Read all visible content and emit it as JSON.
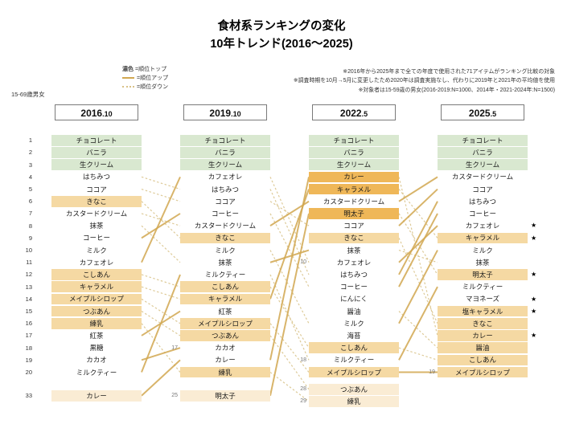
{
  "title": {
    "line1": "食材系ランキングの変化",
    "line2": "10年トレンド(2016〜2025)"
  },
  "legend": {
    "top_pre": "濃色",
    "top": "=順位トップ",
    "up": "=順位アップ",
    "down": "=順位ダウン"
  },
  "audience": "15-69歳男女",
  "notes": [
    "※2016年から2025年まで全ての年度で使用された71アイテムがランキング比較の対象",
    "※調査時期を10月→5月に変更したため2020年は調査実施なし、代わりに2019年と2021年の平均値を使用",
    "※対象者は15-59歳の男女(2016-2019:N=1000、2014年・2021-2024年:N=1500)"
  ],
  "chart_data": {
    "type": "table",
    "title": "食材系ランキングの変化 10年トレンド(2016〜2025)",
    "star_glyph": "★",
    "legend_meaning": {
      "dark": "順位トップ",
      "solid_line": "順位アップ",
      "dotted_line": "順位ダウン"
    },
    "highlight_colors": {
      "green": "#d9e8d0",
      "orange": "#efb758",
      "tan": "#f5d9a3",
      "pale": "#faecd4"
    },
    "line_colors": {
      "up": "#d2a851",
      "down": "#d8c186"
    },
    "columns": [
      {
        "header": "2016.10",
        "items": [
          {
            "label": "チョコレート",
            "hl": "green"
          },
          {
            "label": "バニラ",
            "hl": "green"
          },
          {
            "label": "生クリーム",
            "hl": "green"
          },
          {
            "label": "はちみつ"
          },
          {
            "label": "ココア"
          },
          {
            "label": "きなこ",
            "hl": "tan"
          },
          {
            "label": "カスタードクリーム"
          },
          {
            "label": "抹茶"
          },
          {
            "label": "コーヒー"
          },
          {
            "label": "ミルク"
          },
          {
            "label": "カフェオレ"
          },
          {
            "label": "こしあん",
            "hl": "tan"
          },
          {
            "label": "キャラメル",
            "hl": "tan"
          },
          {
            "label": "メイプルシロップ",
            "hl": "tan"
          },
          {
            "label": "つぶあん",
            "hl": "tan"
          },
          {
            "label": "練乳",
            "hl": "tan"
          },
          {
            "label": "紅茶"
          },
          {
            "label": "黒糖"
          },
          {
            "label": "カカオ"
          },
          {
            "label": "ミルクティー"
          }
        ],
        "extras": [
          {
            "rank": 33,
            "label": "カレー",
            "hl": "pale"
          }
        ]
      },
      {
        "header": "2019.10",
        "items": [
          {
            "label": "チョコレート",
            "hl": "green"
          },
          {
            "label": "バニラ",
            "hl": "green"
          },
          {
            "label": "生クリーム",
            "hl": "green"
          },
          {
            "label": "カフェオレ"
          },
          {
            "label": "はちみつ"
          },
          {
            "label": "ココア"
          },
          {
            "label": "コーヒー"
          },
          {
            "label": "カスタードクリーム"
          },
          {
            "label": "きなこ",
            "hl": "tan"
          },
          {
            "label": "ミルク"
          },
          {
            "label": "抹茶"
          },
          {
            "label": "ミルクティー"
          },
          {
            "label": "こしあん",
            "hl": "tan"
          },
          {
            "label": "キャラメル",
            "hl": "tan"
          },
          {
            "label": "紅茶"
          },
          {
            "label": "メイプルシロップ",
            "hl": "tan"
          },
          {
            "label": "つぶあん",
            "hl": "tan"
          },
          {
            "label": "カカオ",
            "note": 17
          },
          {
            "label": "カレー"
          },
          {
            "label": "練乳",
            "hl": "tan"
          }
        ],
        "extras": [
          {
            "rank": 25,
            "label": "明太子",
            "hl": "pale"
          }
        ]
      },
      {
        "header": "2022.5",
        "items": [
          {
            "label": "チョコレート",
            "hl": "green"
          },
          {
            "label": "バニラ",
            "hl": "green"
          },
          {
            "label": "生クリーム",
            "hl": "green"
          },
          {
            "label": "カレー",
            "hl": "orange"
          },
          {
            "label": "キャラメル",
            "hl": "orange"
          },
          {
            "label": "カスタードクリーム"
          },
          {
            "label": "明太子",
            "hl": "orange"
          },
          {
            "label": "ココア"
          },
          {
            "label": "きなこ",
            "hl": "tan"
          },
          {
            "label": "抹茶"
          },
          {
            "label": "カフェオレ",
            "note": 10
          },
          {
            "label": "はちみつ"
          },
          {
            "label": "コーヒー"
          },
          {
            "label": "にんにく"
          },
          {
            "label": "醤油"
          },
          {
            "label": "ミルク"
          },
          {
            "label": "海苔"
          },
          {
            "label": "こしあん",
            "hl": "tan"
          },
          {
            "label": "ミルクティー",
            "note": 18
          },
          {
            "label": "メイプルシロップ",
            "hl": "tan"
          }
        ],
        "extras": [
          {
            "rank": 28,
            "label": "つぶあん",
            "hl": "pale"
          },
          {
            "rank": 29,
            "label": "練乳",
            "hl": "pale"
          }
        ]
      },
      {
        "header": "2025.5",
        "items": [
          {
            "label": "チョコレート",
            "hl": "green"
          },
          {
            "label": "バニラ",
            "hl": "green"
          },
          {
            "label": "生クリーム",
            "hl": "green"
          },
          {
            "label": "カスタードクリーム"
          },
          {
            "label": "ココア"
          },
          {
            "label": "はちみつ"
          },
          {
            "label": "コーヒー"
          },
          {
            "label": "カフェオレ",
            "star": true
          },
          {
            "label": "キャラメル",
            "hl": "tan",
            "star": true
          },
          {
            "label": "ミルク"
          },
          {
            "label": "抹茶"
          },
          {
            "label": "明太子",
            "hl": "tan",
            "star": true
          },
          {
            "label": "ミルクティー"
          },
          {
            "label": "マヨネーズ",
            "star": true
          },
          {
            "label": "塩キャラメル",
            "hl": "tan",
            "star": true
          },
          {
            "label": "きなこ",
            "hl": "tan"
          },
          {
            "label": "カレー",
            "hl": "tan",
            "star": true
          },
          {
            "label": "醤油",
            "hl": "tan"
          },
          {
            "label": "こしあん",
            "hl": "tan"
          },
          {
            "label": "メイプルシロップ",
            "hl": "tan",
            "note": 19
          }
        ],
        "extras": []
      }
    ]
  }
}
